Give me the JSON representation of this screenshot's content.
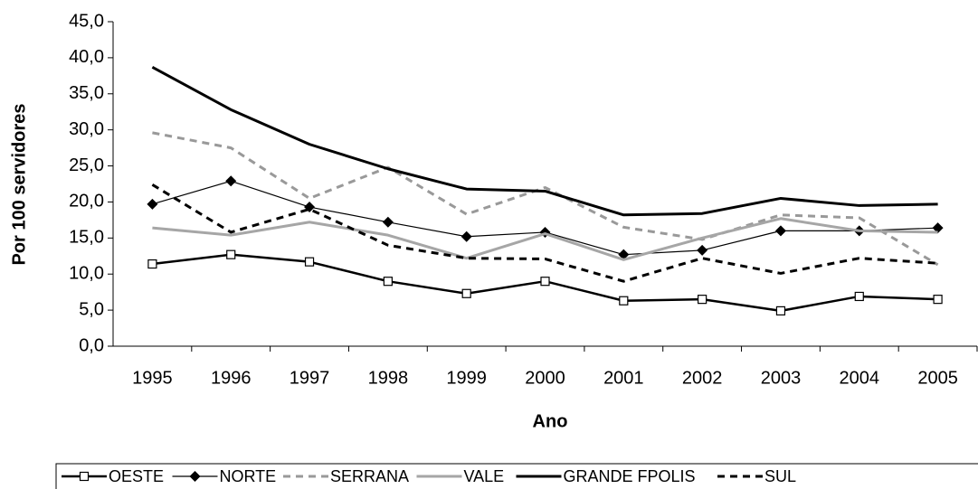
{
  "chart_data": {
    "type": "line",
    "x_label": "Ano",
    "y_label": "Por 100 servidores",
    "categories": [
      "1995",
      "1996",
      "1997",
      "1998",
      "1999",
      "2000",
      "2001",
      "2002",
      "2003",
      "2004",
      "2005"
    ],
    "ylim": [
      0,
      45
    ],
    "yticks": [
      {
        "value": 0,
        "label": "0,0"
      },
      {
        "value": 5,
        "label": "5,0"
      },
      {
        "value": 10,
        "label": "10,0"
      },
      {
        "value": 15,
        "label": "15,0"
      },
      {
        "value": 20,
        "label": "20,0"
      },
      {
        "value": 25,
        "label": "25,0"
      },
      {
        "value": 30,
        "label": "30,0"
      },
      {
        "value": 35,
        "label": "35,0"
      },
      {
        "value": 40,
        "label": "40,0"
      },
      {
        "value": 45,
        "label": "45,0"
      }
    ],
    "grid": false,
    "legend": "bottom",
    "series": [
      {
        "name": "OESTE",
        "color": "#000000",
        "width": 2.5,
        "dash": false,
        "marker": "square",
        "values": [
          11.4,
          12.7,
          11.7,
          9.0,
          7.3,
          9.0,
          6.3,
          6.5,
          4.9,
          6.9,
          6.5
        ]
      },
      {
        "name": "NORTE",
        "color": "#000000",
        "width": 1.2,
        "dash": false,
        "marker": "diamond",
        "values": [
          19.7,
          22.9,
          19.3,
          17.2,
          15.2,
          15.8,
          12.7,
          13.3,
          16.0,
          16.0,
          16.4
        ]
      },
      {
        "name": "SERRANA",
        "color": "#999999",
        "width": 3,
        "dash": true,
        "marker": null,
        "values": [
          29.6,
          27.5,
          20.5,
          24.8,
          18.3,
          22.0,
          16.5,
          14.8,
          18.2,
          17.8,
          11.3
        ]
      },
      {
        "name": "VALE",
        "color": "#a6a6a6",
        "width": 3,
        "dash": false,
        "marker": null,
        "values": [
          16.4,
          15.4,
          17.2,
          15.4,
          12.2,
          15.6,
          12.0,
          15.0,
          17.7,
          16.0,
          15.8
        ]
      },
      {
        "name": "GRANDE FPOLIS",
        "color": "#000000",
        "width": 3,
        "dash": false,
        "marker": null,
        "values": [
          38.7,
          32.8,
          28.0,
          24.6,
          21.8,
          21.5,
          18.2,
          18.4,
          20.5,
          19.5,
          19.7
        ]
      },
      {
        "name": "SUL",
        "color": "#000000",
        "width": 3,
        "dash": true,
        "marker": null,
        "values": [
          22.4,
          15.8,
          19.0,
          14.0,
          12.2,
          12.1,
          9.0,
          12.2,
          10.1,
          12.2,
          11.5
        ]
      }
    ]
  }
}
